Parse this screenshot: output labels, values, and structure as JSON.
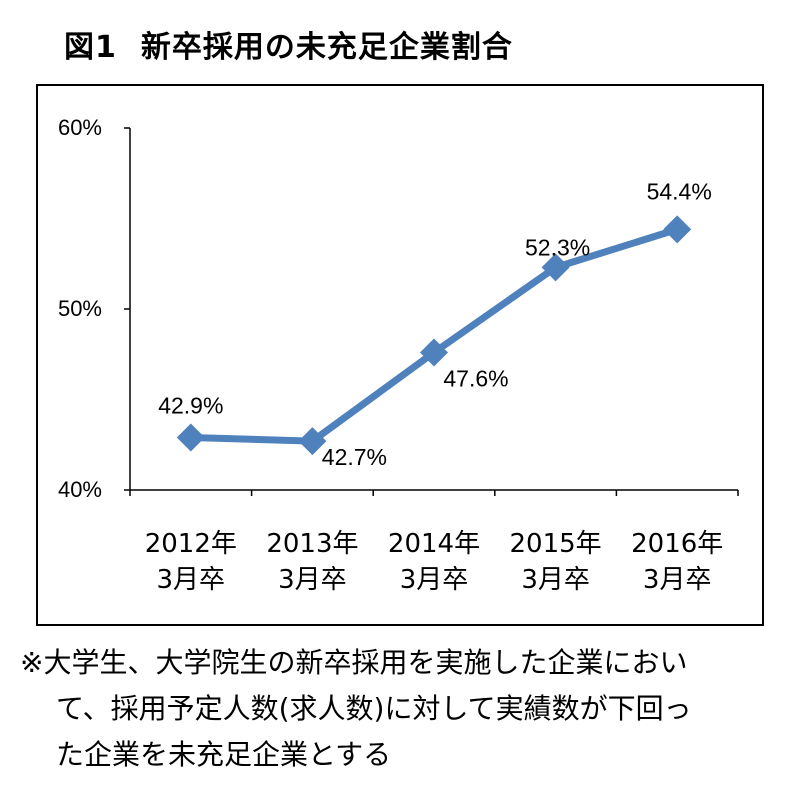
{
  "title": {
    "figure": "図1",
    "name": "新卒採用の未充足企業割合"
  },
  "chart_data": {
    "type": "line",
    "categories": [
      "2012年 3月卒",
      "2013年 3月卒",
      "2014年 3月卒",
      "2015年 3月卒",
      "2016年 3月卒"
    ],
    "category_lines": [
      [
        "2012年",
        "3月卒"
      ],
      [
        "2013年",
        "3月卒"
      ],
      [
        "2014年",
        "3月卒"
      ],
      [
        "2015年",
        "3月卒"
      ],
      [
        "2016年",
        "3月卒"
      ]
    ],
    "values": [
      42.9,
      42.7,
      47.6,
      52.3,
      54.4
    ],
    "data_labels": [
      "42.9%",
      "42.7%",
      "47.6%",
      "52.3%",
      "54.4%"
    ],
    "ylim": [
      40,
      60
    ],
    "y_ticks": [
      40,
      50,
      60
    ],
    "y_tick_labels": [
      "40%",
      "50%",
      "60%"
    ],
    "grid": false,
    "marker": "diamond",
    "series_color": "#4f81bd"
  },
  "note": {
    "lines": [
      "※大学生、大学院生の新卒採用を実施した企業におい",
      "て、採用予定人数(求人数)に対して実績数が下回っ",
      "た企業を未充足企業とする"
    ]
  }
}
